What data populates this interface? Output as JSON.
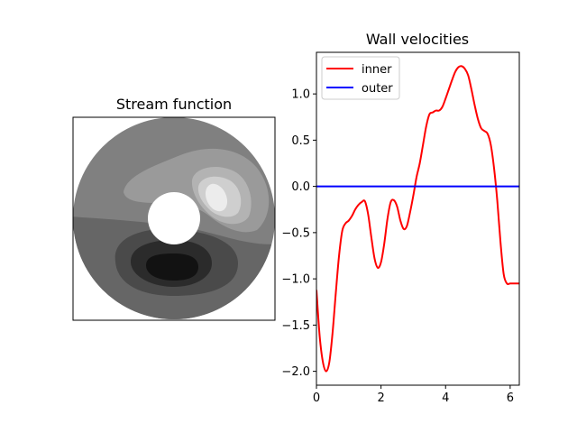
{
  "chart_data": [
    {
      "type": "heatmap",
      "title": "Stream function",
      "colormap": "gray",
      "colors": [
        "#121212",
        "#2b2b2b",
        "#4a4a4a",
        "#666666",
        "#808080",
        "#9a9a9a",
        "#b3b3b3",
        "#cfcfcf",
        "#ececec"
      ],
      "domain": "annulus",
      "axes_ticks": false
    },
    {
      "type": "line",
      "title": "Wall velocities",
      "xlim": [
        0,
        6.283
      ],
      "ylim": [
        -2.15,
        1.45
      ],
      "xticks": [
        0,
        2,
        4,
        6
      ],
      "yticks": [
        -2.0,
        -1.5,
        -1.0,
        -0.5,
        0.0,
        0.5,
        1.0
      ],
      "ytick_labels": [
        "−2.0",
        "−1.5",
        "−1.0",
        "−0.5",
        "0.0",
        "0.5",
        "1.0"
      ],
      "legend_loc": "upper left",
      "series": [
        {
          "name": "inner",
          "color": "#ff0000",
          "x": [
            0,
            0.1,
            0.2,
            0.3,
            0.4,
            0.5,
            0.6,
            0.7,
            0.8,
            0.9,
            1.0,
            1.1,
            1.2,
            1.3,
            1.4,
            1.5,
            1.6,
            1.7,
            1.8,
            1.9,
            2.0,
            2.1,
            2.2,
            2.3,
            2.4,
            2.5,
            2.6,
            2.7,
            2.8,
            2.9,
            3.0,
            3.1,
            3.2,
            3.3,
            3.4,
            3.5,
            3.6,
            3.7,
            3.8,
            3.9,
            4.0,
            4.1,
            4.2,
            4.3,
            4.4,
            4.5,
            4.6,
            4.7,
            4.8,
            4.9,
            5.0,
            5.1,
            5.2,
            5.3,
            5.4,
            5.5,
            5.6,
            5.7,
            5.8,
            5.9,
            6.0,
            6.1,
            6.2,
            6.283
          ],
          "y": [
            -1.12,
            -1.62,
            -1.9,
            -2.0,
            -1.9,
            -1.58,
            -1.15,
            -0.75,
            -0.48,
            -0.4,
            -0.37,
            -0.32,
            -0.25,
            -0.2,
            -0.17,
            -0.16,
            -0.3,
            -0.55,
            -0.78,
            -0.88,
            -0.82,
            -0.62,
            -0.35,
            -0.17,
            -0.15,
            -0.22,
            -0.37,
            -0.46,
            -0.43,
            -0.28,
            -0.1,
            0.1,
            0.25,
            0.45,
            0.65,
            0.78,
            0.8,
            0.82,
            0.82,
            0.86,
            0.95,
            1.05,
            1.15,
            1.24,
            1.29,
            1.3,
            1.27,
            1.2,
            1.05,
            0.88,
            0.73,
            0.63,
            0.6,
            0.57,
            0.45,
            0.2,
            -0.15,
            -0.6,
            -0.95,
            -1.05,
            -1.05,
            -1.05,
            -1.05,
            -1.05
          ]
        },
        {
          "name": "outer",
          "color": "#0000ff",
          "x": [
            0,
            6.283
          ],
          "y": [
            0.0,
            0.0
          ]
        }
      ]
    }
  ]
}
